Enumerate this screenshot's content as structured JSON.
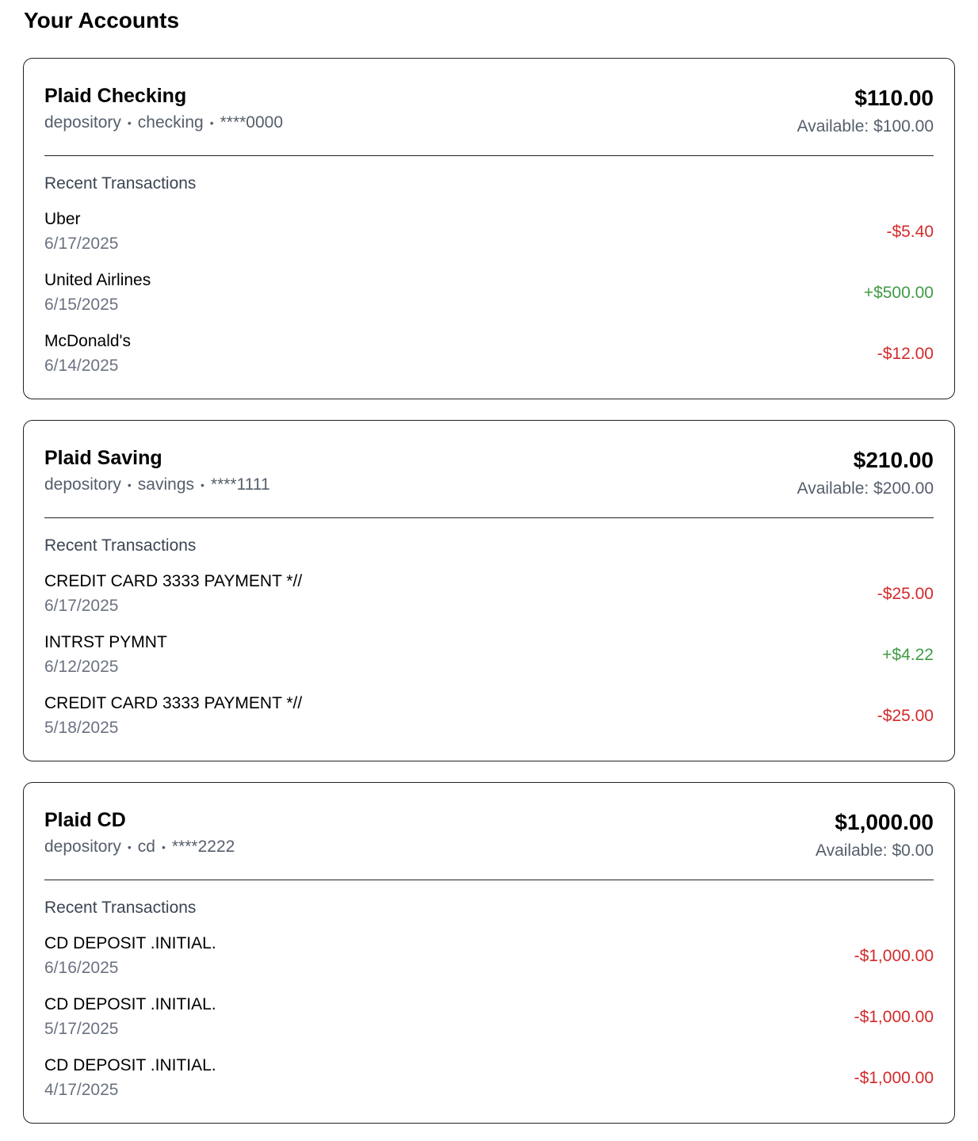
{
  "page": {
    "title": "Your Accounts"
  },
  "colors": {
    "negative": "#d42a2a",
    "positive": "#3f9b45",
    "muted": "#6b7280",
    "border": "#222222"
  },
  "accounts": [
    {
      "name": "Plaid Checking",
      "type": "depository",
      "subtype": "checking",
      "mask": "****0000",
      "separator": "•",
      "balance": "$110.00",
      "available": "Available: $100.00",
      "transactions_heading": "Recent Transactions",
      "transactions": [
        {
          "name": "Uber",
          "date": "6/17/2025",
          "amount": "-$5.40",
          "direction": "negative"
        },
        {
          "name": "United Airlines",
          "date": "6/15/2025",
          "amount": "+$500.00",
          "direction": "positive"
        },
        {
          "name": "McDonald's",
          "date": "6/14/2025",
          "amount": "-$12.00",
          "direction": "negative"
        }
      ]
    },
    {
      "name": "Plaid Saving",
      "type": "depository",
      "subtype": "savings",
      "mask": "****1111",
      "separator": "•",
      "balance": "$210.00",
      "available": "Available: $200.00",
      "transactions_heading": "Recent Transactions",
      "transactions": [
        {
          "name": "CREDIT CARD 3333 PAYMENT *//",
          "date": "6/17/2025",
          "amount": "-$25.00",
          "direction": "negative"
        },
        {
          "name": "INTRST PYMNT",
          "date": "6/12/2025",
          "amount": "+$4.22",
          "direction": "positive"
        },
        {
          "name": "CREDIT CARD 3333 PAYMENT *//",
          "date": "5/18/2025",
          "amount": "-$25.00",
          "direction": "negative"
        }
      ]
    },
    {
      "name": "Plaid CD",
      "type": "depository",
      "subtype": "cd",
      "mask": "****2222",
      "separator": "•",
      "balance": "$1,000.00",
      "available": "Available: $0.00",
      "transactions_heading": "Recent Transactions",
      "transactions": [
        {
          "name": "CD DEPOSIT .INITIAL.",
          "date": "6/16/2025",
          "amount": "-$1,000.00",
          "direction": "negative"
        },
        {
          "name": "CD DEPOSIT .INITIAL.",
          "date": "5/17/2025",
          "amount": "-$1,000.00",
          "direction": "negative"
        },
        {
          "name": "CD DEPOSIT .INITIAL.",
          "date": "4/17/2025",
          "amount": "-$1,000.00",
          "direction": "negative"
        }
      ]
    }
  ]
}
